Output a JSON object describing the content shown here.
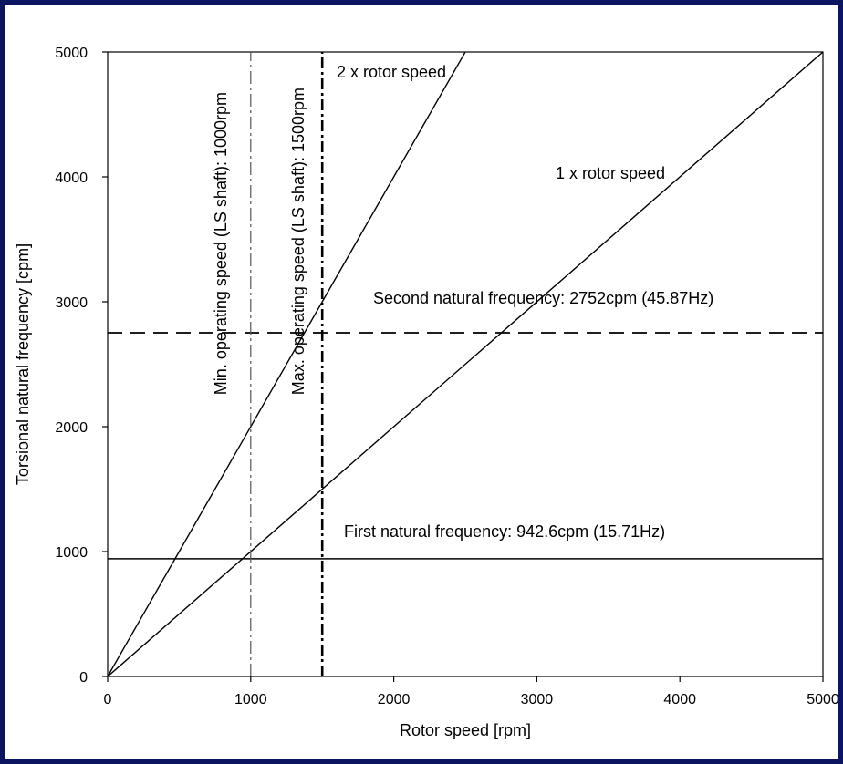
{
  "chart_data": {
    "type": "line",
    "xlabel": "Rotor speed [rpm]",
    "ylabel": "Torsional natural frequency [cpm]",
    "xlim": [
      0,
      5000
    ],
    "ylim": [
      0,
      5000
    ],
    "xticks": [
      0,
      1000,
      2000,
      3000,
      4000,
      5000
    ],
    "yticks": [
      0,
      1000,
      2000,
      3000,
      4000,
      5000
    ],
    "grid": false,
    "series": [
      {
        "name": "2 x rotor speed",
        "x": [
          0,
          2500
        ],
        "y": [
          0,
          5000
        ],
        "style": "solid"
      },
      {
        "name": "1 x rotor speed",
        "x": [
          0,
          5000
        ],
        "y": [
          0,
          5000
        ],
        "style": "solid"
      },
      {
        "name": "First natural frequency: 942.6cpm (15.71Hz)",
        "x": [
          0,
          5000
        ],
        "y": [
          942.6,
          942.6
        ],
        "style": "solid"
      },
      {
        "name": "Second natural frequency: 2752cpm (45.87Hz)",
        "x": [
          0,
          5000
        ],
        "y": [
          2752,
          2752
        ],
        "style": "dashed"
      },
      {
        "name": "Min. operating speed (LS shaft): 1000rpm",
        "x": [
          1000,
          1000
        ],
        "y": [
          0,
          5000
        ],
        "style": "dashdot-thin"
      },
      {
        "name": "Max. operating speed (LS shaft): 1500rpm",
        "x": [
          1500,
          1500
        ],
        "y": [
          0,
          5000
        ],
        "style": "dashdot-thick"
      }
    ]
  }
}
